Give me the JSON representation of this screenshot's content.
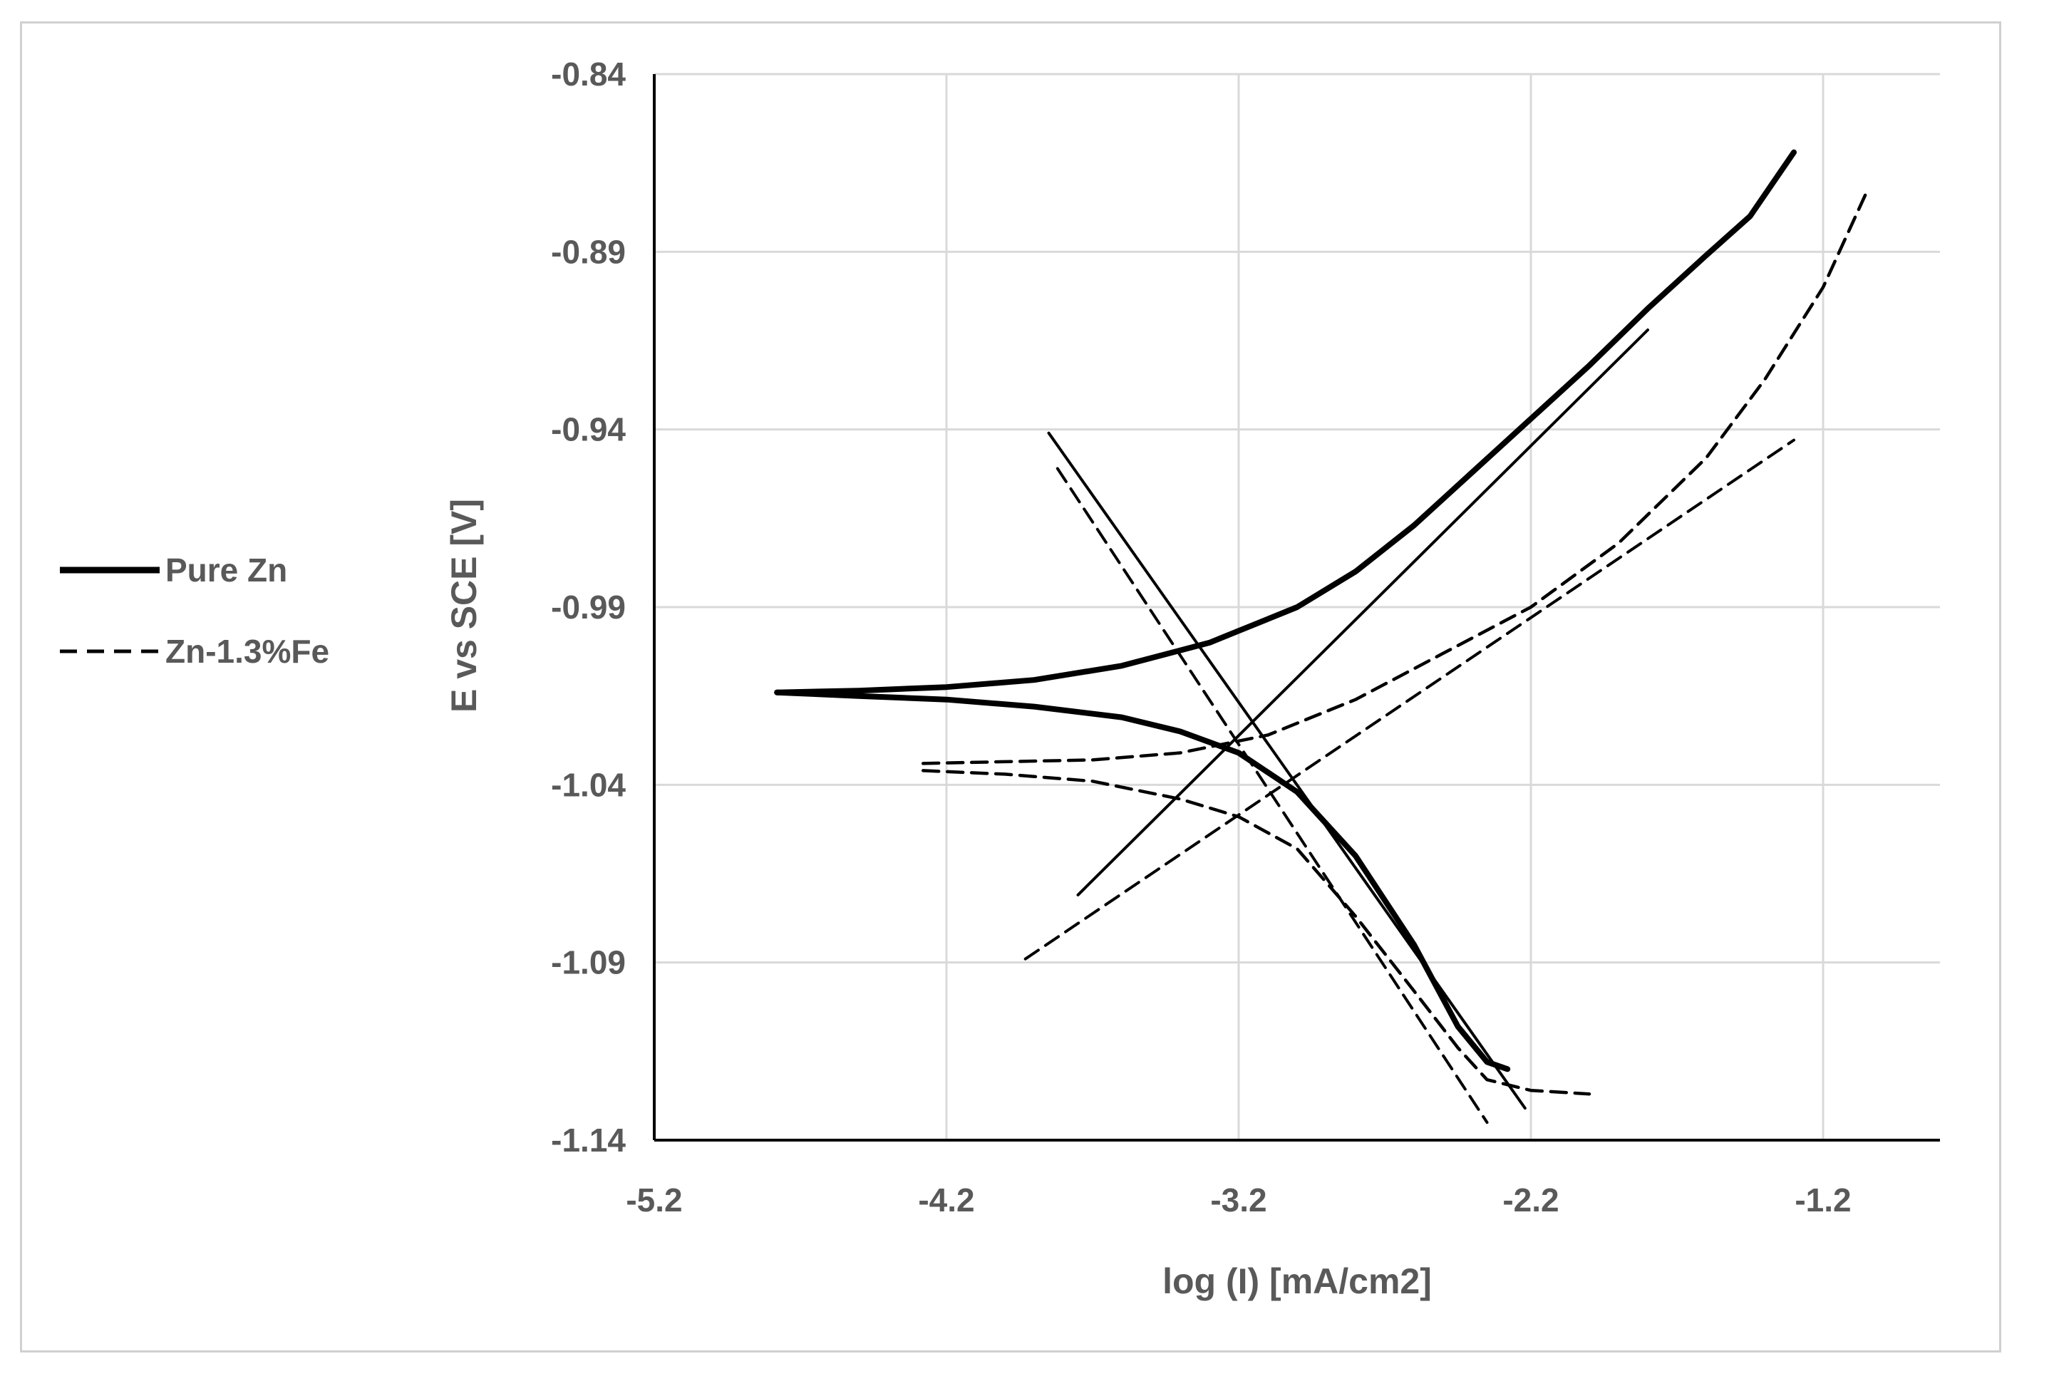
{
  "chart_data": {
    "type": "line",
    "title": "",
    "xlabel": "log (I) [mA/cm2]",
    "ylabel": "E vs SCE [V]",
    "xlim": [
      -5.2,
      -0.8
    ],
    "ylim": [
      -1.14,
      -0.84
    ],
    "xticks": [
      -5.2,
      -4.2,
      -3.2,
      -2.2,
      -1.2
    ],
    "xtick_labels": [
      "-5.2",
      "-4.2",
      "-3.2",
      "-2.2",
      "-1.2"
    ],
    "yticks": [
      -0.84,
      -0.89,
      -0.94,
      -0.99,
      -1.04,
      -1.09,
      -1.14
    ],
    "ytick_labels": [
      "-0.84",
      "-0.89",
      "-0.94",
      "-0.99",
      "-1.04",
      "-1.09",
      "-1.14"
    ],
    "grid": true,
    "legend_position": "left",
    "legend": [
      {
        "label": "Pure Zn",
        "style": "solid"
      },
      {
        "label": "Zn-1.3%Fe",
        "style": "dashed"
      }
    ],
    "series": [
      {
        "name": "Pure Zn",
        "style": "solid",
        "role": "anodic branch",
        "x": [
          -4.78,
          -4.5,
          -4.2,
          -3.9,
          -3.6,
          -3.3,
          -3.0,
          -2.8,
          -2.6,
          -2.4,
          -2.2,
          -2.0,
          -1.8,
          -1.6,
          -1.45,
          -1.3
        ],
        "y": [
          -1.014,
          -1.0135,
          -1.0125,
          -1.0105,
          -1.0065,
          -1.0,
          -0.99,
          -0.98,
          -0.967,
          -0.952,
          -0.937,
          -0.922,
          -0.906,
          -0.891,
          -0.88,
          -0.862
        ]
      },
      {
        "name": "Pure Zn",
        "style": "solid",
        "role": "cathodic branch",
        "x": [
          -4.78,
          -4.5,
          -4.2,
          -3.9,
          -3.6,
          -3.4,
          -3.2,
          -3.0,
          -2.8,
          -2.6,
          -2.45,
          -2.35,
          -2.28
        ],
        "y": [
          -1.014,
          -1.015,
          -1.016,
          -1.018,
          -1.021,
          -1.025,
          -1.031,
          -1.042,
          -1.06,
          -1.085,
          -1.108,
          -1.118,
          -1.12
        ]
      },
      {
        "name": "Pure Zn",
        "style": "solid",
        "role": "anodic Tafel fit",
        "x": [
          -3.75,
          -1.8
        ],
        "y": [
          -1.071,
          -0.912
        ]
      },
      {
        "name": "Pure Zn",
        "style": "solid",
        "role": "cathodic Tafel fit",
        "x": [
          -3.85,
          -2.22
        ],
        "y": [
          -0.941,
          -1.131
        ]
      },
      {
        "name": "Zn-1.3%Fe",
        "style": "dashed",
        "role": "anodic branch",
        "x": [
          -4.28,
          -4.0,
          -3.7,
          -3.4,
          -3.1,
          -2.8,
          -2.5,
          -2.2,
          -1.9,
          -1.6,
          -1.4,
          -1.2,
          -1.05
        ],
        "y": [
          -1.034,
          -1.0335,
          -1.033,
          -1.031,
          -1.026,
          -1.016,
          -1.003,
          -0.99,
          -0.972,
          -0.948,
          -0.926,
          -0.9,
          -0.873
        ]
      },
      {
        "name": "Zn-1.3%Fe",
        "style": "dashed",
        "role": "cathodic branch",
        "x": [
          -4.28,
          -4.0,
          -3.7,
          -3.4,
          -3.2,
          -3.0,
          -2.8,
          -2.6,
          -2.45,
          -2.35,
          -2.2,
          -2.0
        ],
        "y": [
          -1.036,
          -1.037,
          -1.039,
          -1.044,
          -1.049,
          -1.058,
          -1.077,
          -1.098,
          -1.114,
          -1.123,
          -1.126,
          -1.127
        ]
      },
      {
        "name": "Zn-1.3%Fe",
        "style": "dashed",
        "role": "anodic Tafel fit",
        "x": [
          -3.93,
          -1.3
        ],
        "y": [
          -1.089,
          -0.943
        ]
      },
      {
        "name": "Zn-1.3%Fe",
        "style": "dashed",
        "role": "cathodic Tafel fit",
        "x": [
          -3.82,
          -2.35
        ],
        "y": [
          -0.951,
          -1.135
        ]
      }
    ]
  }
}
